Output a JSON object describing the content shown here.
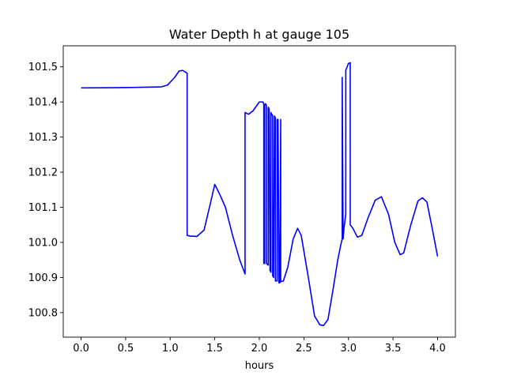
{
  "chart_data": {
    "type": "line",
    "title": "Water Depth h at gauge 105",
    "xlabel": "hours",
    "ylabel": "",
    "xlim": [
      -0.2,
      4.2
    ],
    "ylim": [
      100.73,
      101.56
    ],
    "xticks": [
      0.0,
      0.5,
      1.0,
      1.5,
      2.0,
      2.5,
      3.0,
      3.5,
      4.0
    ],
    "xtick_labels": [
      "0.0",
      "0.5",
      "1.0",
      "1.5",
      "2.0",
      "2.5",
      "3.0",
      "3.5",
      "4.0"
    ],
    "yticks": [
      100.8,
      100.9,
      101.0,
      101.1,
      101.2,
      101.3,
      101.4,
      101.5
    ],
    "ytick_labels": [
      "100.8",
      "100.9",
      "101.0",
      "101.1",
      "101.2",
      "101.3",
      "101.4",
      "101.5"
    ],
    "grid": false,
    "series": [
      {
        "color": "#0000ff",
        "x": [
          0.0,
          0.5,
          0.9,
          0.97,
          1.05,
          1.1,
          1.14,
          1.19,
          1.19,
          1.22,
          1.3,
          1.38,
          1.45,
          1.5,
          1.55,
          1.62,
          1.7,
          1.78,
          1.84,
          1.84,
          1.88,
          1.93,
          2.0,
          2.04,
          2.05,
          2.05,
          2.06,
          2.06,
          2.07,
          2.08,
          2.08,
          2.1,
          2.1,
          2.11,
          2.12,
          2.13,
          2.13,
          2.15,
          2.15,
          2.16,
          2.17,
          2.18,
          2.18,
          2.2,
          2.2,
          2.21,
          2.22,
          2.23,
          2.24,
          2.24,
          2.27,
          2.32,
          2.38,
          2.43,
          2.47,
          2.55,
          2.62,
          2.68,
          2.72,
          2.77,
          2.83,
          2.88,
          2.92,
          2.93,
          2.93,
          2.94,
          2.95,
          2.97,
          2.97,
          3.0,
          3.01,
          3.02,
          3.02,
          3.05,
          3.1,
          3.15,
          3.22,
          3.3,
          3.37,
          3.45,
          3.52,
          3.58,
          3.62,
          3.7,
          3.78,
          3.83,
          3.88,
          3.94,
          4.0
        ],
        "y": [
          101.44,
          101.441,
          101.443,
          101.448,
          101.47,
          101.488,
          101.49,
          101.482,
          101.02,
          101.018,
          101.017,
          101.035,
          101.11,
          101.165,
          101.14,
          101.1,
          101.02,
          100.95,
          100.91,
          101.37,
          101.365,
          101.375,
          101.4,
          101.4,
          101.395,
          100.94,
          100.94,
          101.39,
          101.395,
          101.39,
          100.94,
          100.935,
          101.385,
          101.38,
          100.92,
          100.915,
          101.37,
          101.36,
          100.905,
          100.9,
          101.36,
          101.355,
          100.89,
          100.89,
          101.35,
          101.35,
          100.885,
          100.885,
          101.35,
          100.888,
          100.89,
          100.93,
          101.01,
          101.04,
          101.02,
          100.9,
          100.79,
          100.765,
          100.763,
          100.78,
          100.87,
          100.95,
          101.0,
          101.01,
          101.47,
          101.01,
          101.04,
          101.08,
          101.49,
          101.51,
          101.51,
          101.512,
          101.05,
          101.04,
          101.015,
          101.02,
          101.07,
          101.12,
          101.13,
          101.08,
          101.0,
          100.965,
          100.97,
          101.05,
          101.118,
          101.127,
          101.115,
          101.04,
          100.96
        ]
      }
    ]
  }
}
